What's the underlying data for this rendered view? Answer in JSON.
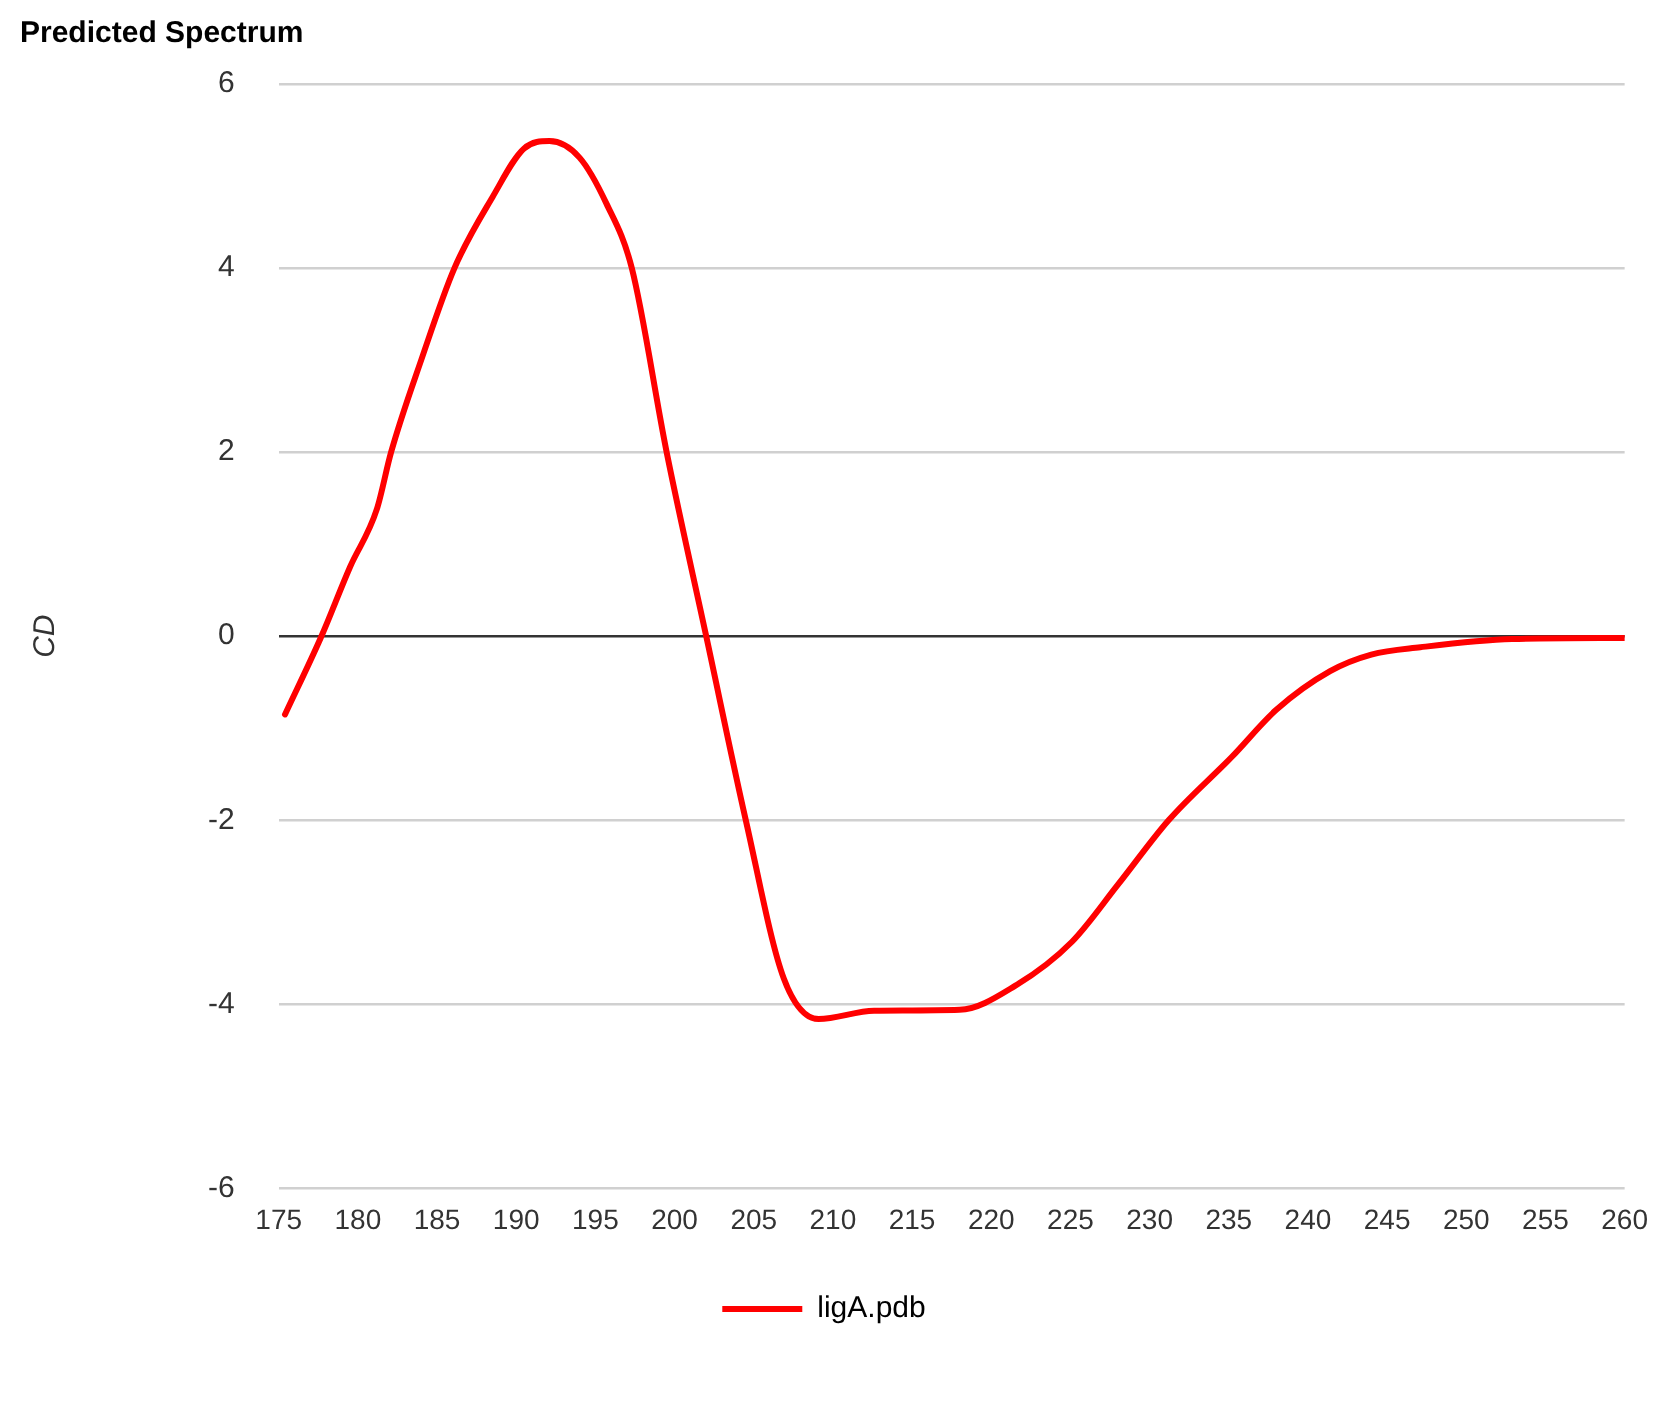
{
  "chart_data": {
    "type": "line",
    "title": "Predicted Spectrum",
    "ylabel": "CD",
    "xlim": [
      175,
      260
    ],
    "xticks": [
      175,
      180,
      185,
      190,
      195,
      200,
      205,
      210,
      215,
      220,
      225,
      230,
      235,
      240,
      245,
      250,
      255,
      260
    ],
    "ylim": [
      -6,
      6
    ],
    "yticks": [
      -6,
      -4,
      -2,
      0,
      2,
      4,
      6
    ],
    "grid": "y",
    "legend": "bottom",
    "marker": "none",
    "line_style": "solid",
    "series": [
      {
        "name": "ligA.pdb",
        "color": "#ff0000",
        "x": [
          175.4,
          177.7,
          179.5,
          181.2,
          182.1,
          184.0,
          186.1,
          188.5,
          190.5,
          192.1,
          194.0,
          195.7,
          197.3,
          199.5,
          202.0,
          204.5,
          206.9,
          209.1,
          212.6,
          218.0,
          221.5,
          225.1,
          228.0,
          231.2,
          235.2,
          238.0,
          241.4,
          244.0,
          247.1,
          252.9,
          260.0
        ],
        "values": [
          -0.85,
          0,
          0.75,
          1.38,
          2,
          3,
          4,
          4.77,
          5.3,
          5.38,
          5.2,
          4.7,
          4,
          2,
          0,
          -2,
          -3.72,
          -4.16,
          -4.07,
          -4.06,
          -3.8,
          -3.32,
          -2.7,
          -2,
          -1.31,
          -0.8,
          -0.38,
          -0.2,
          -0.12,
          -0.03,
          -0.02
        ]
      }
    ]
  }
}
